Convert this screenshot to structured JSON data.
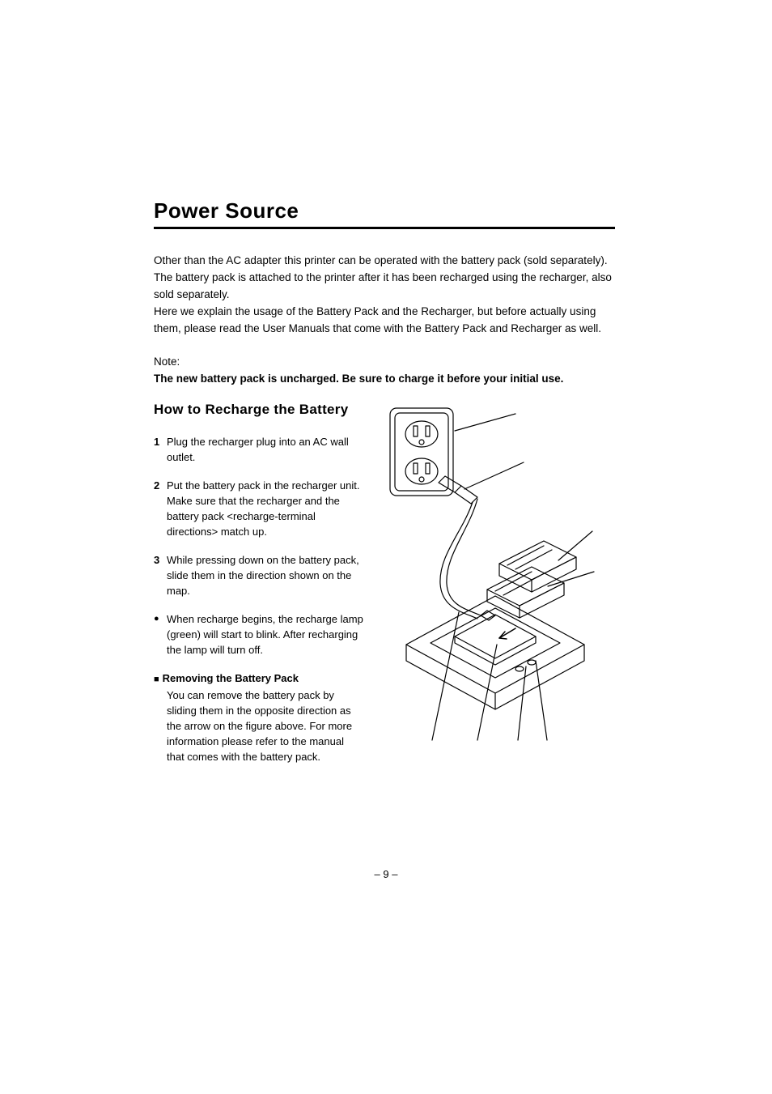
{
  "title": "Power Source",
  "intro": "Other than the AC adapter this printer can be operated with the battery pack (sold separately). The battery pack is attached to the printer after it has been recharged using the recharger, also sold separately.\nHere we explain the usage of the Battery Pack and the Recharger, but before actually using them, please read the User Manuals that come with the Battery Pack and Recharger as well.",
  "note_label": "Note:",
  "note_bold": "The new battery pack is uncharged.  Be sure to charge it before your initial use.",
  "subheading": "How to Recharge the Battery",
  "steps": [
    {
      "n": "1",
      "text": "Plug the recharger plug into an AC wall outlet."
    },
    {
      "n": "2",
      "text": "Put the battery pack in the recharger unit.  Make sure that the recharger and the battery pack <recharge-terminal directions> match up."
    },
    {
      "n": "3",
      "text": "While pressing down on the battery pack, slide them in the direction shown on the map."
    }
  ],
  "bullet": "When recharge begins, the recharge lamp (green) will start to blink.  After recharging the lamp will turn off.",
  "remove_heading": "Removing the Battery Pack",
  "remove_body": "You can remove the battery pack by sliding them in the opposite direction as the arrow on the figure above.  For more information please refer to the manual that comes with the battery pack.",
  "page_number": "– 9 –",
  "colors": {
    "text": "#000000",
    "bg": "#ffffff",
    "rule": "#000000",
    "stroke": "#000000",
    "fill_light": "#ffffff"
  },
  "diagram": {
    "description": "Line drawing: wall outlet plate with two sockets, a plug with cord leading to a battery recharger base; two battery packs shown being inserted with arrow indicators; callout leader lines radiating from components.",
    "stroke_width": 1.2
  }
}
